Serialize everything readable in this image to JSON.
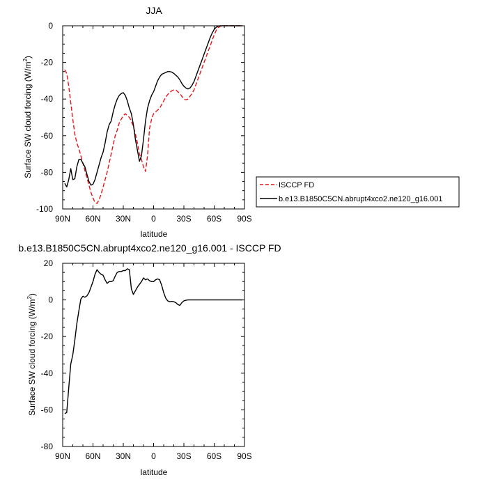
{
  "chart_data": [
    {
      "type": "line",
      "title": "JJA",
      "xlabel": "latitude",
      "ylabel_main": "Surface SW cloud forcing (W/m",
      "ylabel_sup": "2",
      "ylabel_close": ")",
      "xlim": [
        90,
        -90
      ],
      "ylim": [
        -100,
        0
      ],
      "xticks": [
        90,
        60,
        30,
        0,
        -30,
        -60,
        -90
      ],
      "xtick_labels": [
        "90N",
        "60N",
        "30N",
        "0",
        "30S",
        "60S",
        "90S"
      ],
      "yticks": [
        0,
        -20,
        -40,
        -60,
        -80,
        -100
      ],
      "ytick_labels": [
        "0",
        "-20",
        "-40",
        "-60",
        "-80",
        "-100"
      ],
      "legend_position": "outside-right",
      "series": [
        {
          "name": "ISCCP FD",
          "color": "#e8141c",
          "dash": "dashed",
          "x": [
            88,
            86,
            84,
            82,
            80,
            78,
            76,
            74,
            72,
            70,
            68,
            66,
            64,
            62,
            60,
            58,
            56,
            54,
            52,
            50,
            48,
            46,
            44,
            42,
            40,
            38,
            36,
            34,
            32,
            30,
            28,
            26,
            24,
            22,
            20,
            18,
            16,
            14,
            12,
            10,
            8,
            6,
            4,
            2,
            0,
            -2,
            -4,
            -6,
            -8,
            -10,
            -12,
            -14,
            -16,
            -18,
            -20,
            -22,
            -24,
            -26,
            -28,
            -30,
            -32,
            -34,
            -36,
            -38,
            -40,
            -42,
            -44,
            -46,
            -48,
            -50,
            -52,
            -54,
            -56,
            -58,
            -60,
            -62,
            -64,
            -66,
            -68,
            -70,
            -72,
            -74,
            -76,
            -78,
            -80,
            -82,
            -84,
            -86,
            -88
          ],
          "y": [
            -24,
            -26,
            -33,
            -42,
            -51,
            -59,
            -64,
            -67,
            -71,
            -75,
            -79,
            -83,
            -87,
            -91,
            -94,
            -96.5,
            -97,
            -95,
            -92,
            -88,
            -84,
            -80,
            -75,
            -70,
            -65,
            -60,
            -57,
            -53,
            -51,
            -49,
            -48,
            -49,
            -50,
            -52,
            -55,
            -59,
            -64,
            -70,
            -73,
            -77,
            -79.5,
            -71,
            -56,
            -51,
            -48,
            -47,
            -46,
            -45,
            -43,
            -41,
            -39,
            -37.5,
            -36.5,
            -35.5,
            -35,
            -35,
            -36,
            -37,
            -38.5,
            -40,
            -40.5,
            -40,
            -38.5,
            -37,
            -35,
            -32,
            -29,
            -26,
            -23,
            -20,
            -17,
            -14,
            -11,
            -8,
            -5,
            -2.5,
            -1,
            -0.3,
            0,
            0,
            0,
            0,
            0,
            0,
            0,
            0,
            0,
            0,
            0
          ]
        },
        {
          "name": "b.e13.B1850C5CN.abrupt4xco2.ne120_g16.001",
          "color": "#000000",
          "dash": "solid",
          "x": [
            88,
            86,
            84,
            82,
            80,
            78,
            76,
            74,
            72,
            70,
            68,
            66,
            64,
            62,
            60,
            58,
            56,
            54,
            52,
            50,
            48,
            46,
            44,
            42,
            40,
            38,
            36,
            34,
            32,
            30,
            28,
            26,
            24,
            22,
            20,
            18,
            16,
            14,
            12,
            10,
            8,
            6,
            4,
            2,
            0,
            -2,
            -4,
            -6,
            -8,
            -10,
            -12,
            -14,
            -16,
            -18,
            -20,
            -22,
            -24,
            -26,
            -28,
            -30,
            -32,
            -34,
            -36,
            -38,
            -40,
            -42,
            -44,
            -46,
            -48,
            -50,
            -52,
            -54,
            -56,
            -58,
            -60,
            -62,
            -64,
            -66,
            -68,
            -70,
            -72,
            -74,
            -76,
            -78,
            -80,
            -82,
            -84,
            -86,
            -88
          ],
          "y": [
            -86,
            -88,
            -84,
            -78,
            -84,
            -83.5,
            -77,
            -73,
            -73,
            -75,
            -77,
            -81,
            -85,
            -87,
            -86.5,
            -84,
            -80,
            -76,
            -72,
            -69,
            -64,
            -58,
            -54,
            -52,
            -47,
            -43,
            -40,
            -38,
            -37,
            -36.5,
            -38,
            -41,
            -45,
            -48,
            -54,
            -62,
            -68,
            -74,
            -71,
            -62,
            -52,
            -45,
            -41,
            -38,
            -36,
            -33,
            -30,
            -28,
            -26.5,
            -26,
            -25.5,
            -25,
            -25,
            -25.3,
            -26,
            -27,
            -28,
            -29.5,
            -31.5,
            -33,
            -34,
            -34.5,
            -34,
            -32.5,
            -30.5,
            -27.5,
            -24.5,
            -21.5,
            -18.5,
            -15.5,
            -12.5,
            -9.5,
            -6.5,
            -4,
            -2,
            -0.8,
            -0.2,
            0,
            0,
            0,
            0,
            0,
            0,
            0,
            0,
            0,
            0,
            0,
            0
          ]
        }
      ]
    },
    {
      "type": "line",
      "title": "b.e13.B1850C5CN.abrupt4xco2.ne120_g16.001 - ISCCP FD",
      "xlabel": "latitude",
      "ylabel_main": "Surface SW cloud forcing (W/m",
      "ylabel_sup": "2",
      "ylabel_close": ")",
      "xlim": [
        90,
        -90
      ],
      "ylim": [
        -80,
        20
      ],
      "xticks": [
        90,
        60,
        30,
        0,
        -30,
        -60,
        -90
      ],
      "xtick_labels": [
        "90N",
        "60N",
        "30N",
        "0",
        "30S",
        "60S",
        "90S"
      ],
      "yticks": [
        20,
        0,
        -20,
        -40,
        -60,
        -80
      ],
      "ytick_labels": [
        "20",
        "0",
        "-20",
        "-40",
        "-60",
        "-80"
      ],
      "series": [
        {
          "color": "#000000",
          "x": [
            88,
            86,
            84,
            82,
            80,
            78,
            76,
            74,
            72,
            70,
            68,
            66,
            64,
            62,
            60,
            58,
            56,
            54,
            52,
            50,
            48,
            46,
            44,
            42,
            40,
            38,
            36,
            34,
            32,
            30,
            28,
            26,
            24,
            22,
            20,
            18,
            16,
            14,
            12,
            10,
            8,
            6,
            4,
            2,
            0,
            -2,
            -4,
            -6,
            -8,
            -10,
            -12,
            -14,
            -16,
            -18,
            -20,
            -22,
            -24,
            -26,
            -28,
            -30,
            -32,
            -34,
            -36,
            -38,
            -40,
            -42,
            -44,
            -46,
            -48,
            -50,
            -52,
            -54,
            -56,
            -58,
            -60,
            -62,
            -64,
            -66,
            -68,
            -70,
            -72,
            -74,
            -76,
            -78,
            -80,
            -82,
            -84,
            -86,
            -88
          ],
          "y": [
            -62,
            -61.5,
            -48,
            -35,
            -30,
            -22,
            -13,
            -6,
            0.5,
            2,
            1.5,
            2.2,
            4,
            7,
            10,
            14,
            16.5,
            15,
            14,
            13.5,
            11,
            9,
            10,
            10,
            10.5,
            13,
            15,
            15.5,
            15.5,
            16,
            16,
            17,
            16.5,
            6,
            3,
            5,
            7,
            8.5,
            10,
            12,
            11,
            11.5,
            10.5,
            10,
            10,
            11,
            11.5,
            11,
            8,
            4,
            1,
            -0.5,
            -1,
            -0.8,
            -1,
            -1.5,
            -2.5,
            -3,
            -1.5,
            -0.5,
            -0.2,
            0,
            0,
            0,
            0,
            0,
            0,
            0,
            0,
            0,
            0,
            0,
            0,
            0,
            0,
            0,
            0,
            0,
            0,
            0,
            0,
            0,
            0,
            0,
            0,
            0,
            0,
            0,
            0
          ]
        }
      ]
    }
  ]
}
